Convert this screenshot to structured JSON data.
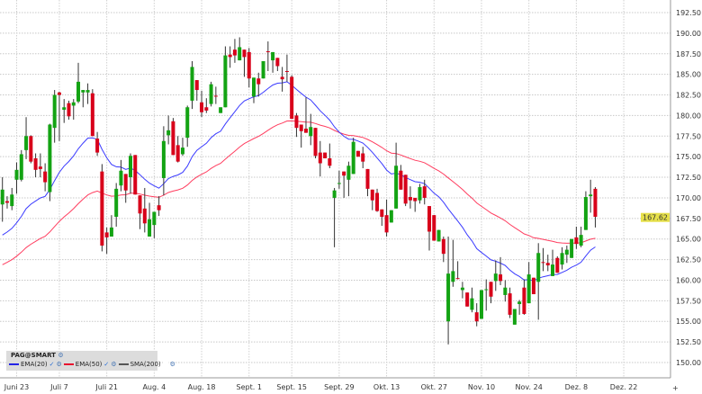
{
  "chart_data": {
    "type": "candlestick",
    "y_axis": {
      "range": [
        148.5,
        194
      ],
      "ticks": [
        192.5,
        190,
        187.5,
        185,
        182.5,
        180,
        177.5,
        175,
        172.5,
        170,
        167.5,
        165,
        162.5,
        160,
        157.5,
        155,
        152.5,
        150
      ],
      "labels": [
        "192.50",
        "190.00",
        "187.50",
        "185.00",
        "182.50",
        "180.00",
        "177.50",
        "175.00",
        "172.50",
        "170.00",
        "167.50",
        "165.00",
        "162.50",
        "160.00",
        "157.50",
        "155.00",
        "152.50",
        "150.00"
      ],
      "position": "right"
    },
    "x_ticks": [
      {
        "label": "Juni 23",
        "index": 3
      },
      {
        "label": "Juli 7",
        "index": 12
      },
      {
        "label": "Juli 21",
        "index": 22
      },
      {
        "label": "Aug. 4",
        "index": 32
      },
      {
        "label": "Aug. 18",
        "index": 42
      },
      {
        "label": "Sept. 1",
        "index": 52
      },
      {
        "label": "Sept. 15",
        "index": 61
      },
      {
        "label": "Sept. 29",
        "index": 71
      },
      {
        "label": "Okt. 13",
        "index": 81
      },
      {
        "label": "Okt. 27",
        "index": 91
      },
      {
        "label": "Nov. 10",
        "index": 101
      },
      {
        "label": "Nov. 24",
        "index": 111
      },
      {
        "label": "Dez. 8",
        "index": 121
      },
      {
        "label": "Dez. 22",
        "index": 131
      }
    ],
    "grid": true,
    "last_price": {
      "value": 167.62,
      "label": "167.62",
      "color": "#e6e04a"
    },
    "colors": {
      "up": "#13a313",
      "down": "#d8001a",
      "wick": "#333333",
      "ema20": "#3a3aff",
      "ema50": "#ff3d5f",
      "sma200": "#555555"
    },
    "ema_seed": {
      "ema20": 164.9,
      "ema50": 161.5
    },
    "candles_ohlc": [
      [
        169.2,
        172.5,
        167.1,
        171.0
      ],
      [
        169.6,
        170.2,
        168.7,
        169.4
      ],
      [
        169.0,
        171.2,
        168.5,
        170.4
      ],
      [
        172.2,
        174.3,
        170.5,
        173.4
      ],
      [
        172.2,
        175.8,
        172.0,
        175.3
      ],
      [
        175.8,
        179.8,
        174.7,
        177.5
      ],
      [
        177.5,
        177.6,
        174.2,
        174.4
      ],
      [
        174.8,
        175.4,
        172.5,
        173.4
      ],
      [
        173.8,
        175.4,
        172.5,
        173.5
      ],
      [
        173.2,
        174.2,
        170.8,
        171.9
      ],
      [
        170.7,
        179.0,
        169.6,
        178.9
      ],
      [
        178.5,
        183.1,
        176.7,
        182.5
      ],
      [
        182.8,
        182.9,
        176.9,
        182.5
      ],
      [
        180.7,
        182.0,
        179.1,
        181.0
      ],
      [
        181.5,
        181.8,
        179.5,
        179.9
      ],
      [
        181.2,
        182.0,
        179.5,
        181.6
      ],
      [
        181.7,
        186.4,
        181.5,
        184.1
      ],
      [
        182.8,
        183.1,
        181.0,
        183.1
      ],
      [
        182.8,
        183.9,
        181.4,
        183.1
      ],
      [
        182.7,
        183.2,
        177.5,
        177.5
      ],
      [
        177.2,
        178.0,
        175.1,
        175.5
      ],
      [
        173.2,
        174.1,
        163.5,
        164.2
      ],
      [
        165.8,
        166.4,
        163.2,
        165.2
      ],
      [
        165.3,
        167.9,
        165.3,
        166.4
      ],
      [
        167.7,
        171.8,
        166.5,
        171.1
      ],
      [
        171.5,
        174.6,
        170.8,
        173.3
      ],
      [
        172.9,
        172.9,
        169.4,
        170.9
      ],
      [
        172.5,
        175.4,
        170.5,
        175.1
      ],
      [
        175.2,
        175.2,
        170.4,
        170.4
      ],
      [
        170.3,
        170.3,
        166.2,
        168.1
      ],
      [
        168.7,
        171.2,
        165.8,
        166.9
      ],
      [
        165.3,
        169.4,
        165.3,
        167.4
      ],
      [
        166.7,
        168.3,
        165.1,
        168.3
      ],
      [
        169.1,
        170.2,
        167.8,
        168.5
      ],
      [
        172.4,
        178.7,
        170.3,
        176.9
      ],
      [
        177.6,
        180.0,
        176.5,
        178.2
      ],
      [
        179.3,
        179.7,
        175.2,
        175.2
      ],
      [
        176.4,
        177.5,
        174.3,
        174.4
      ],
      [
        175.3,
        177.3,
        175.1,
        176.1
      ],
      [
        177.3,
        181.2,
        176.2,
        181.0
      ],
      [
        181.8,
        186.6,
        180.8,
        185.9
      ],
      [
        184.3,
        184.3,
        181.8,
        183.1
      ],
      [
        181.6,
        183.0,
        179.8,
        180.4
      ],
      [
        181.0,
        182.1,
        180.3,
        180.6
      ],
      [
        181.4,
        184.1,
        181.1,
        183.8
      ],
      [
        182.4,
        183.5,
        181.4,
        182.3
      ],
      [
        180.3,
        181.0,
        180.3,
        181.0
      ],
      [
        181.0,
        188.4,
        181.0,
        187.3
      ],
      [
        187.4,
        188.4,
        185.8,
        187.1
      ],
      [
        188.0,
        189.3,
        186.4,
        187.3
      ],
      [
        186.7,
        189.5,
        186.7,
        188.3
      ],
      [
        188.0,
        188.0,
        184.7,
        187.1
      ],
      [
        187.7,
        188.2,
        183.4,
        184.5
      ],
      [
        182.3,
        184.6,
        181.5,
        184.6
      ],
      [
        184.5,
        185.2,
        182.3,
        183.8
      ],
      [
        184.5,
        186.6,
        184.5,
        186.6
      ],
      [
        187.8,
        189.0,
        185.4,
        187.7
      ],
      [
        186.7,
        187.7,
        185.2,
        187.7
      ],
      [
        187.0,
        187.0,
        185.4,
        186.0
      ],
      [
        184.7,
        185.9,
        182.9,
        184.4
      ],
      [
        185.4,
        187.4,
        184.1,
        185.3
      ],
      [
        184.7,
        184.9,
        179.6,
        179.6
      ],
      [
        180.0,
        180.3,
        177.4,
        178.5
      ],
      [
        178.9,
        178.9,
        176.1,
        178.1
      ],
      [
        178.4,
        182.2,
        177.9,
        177.9
      ],
      [
        177.5,
        180.2,
        176.4,
        178.6
      ],
      [
        178.5,
        178.5,
        174.8,
        175.1
      ],
      [
        175.5,
        176.9,
        172.6,
        174.2
      ],
      [
        175.5,
        175.5,
        174.8,
        174.8
      ],
      [
        174.8,
        176.6,
        173.6,
        173.9
      ],
      [
        170.0,
        171.2,
        164.0,
        170.9
      ],
      [
        171.7,
        173.3,
        171.1,
        171.8
      ],
      [
        173.2,
        173.2,
        170.0,
        172.7
      ],
      [
        172.2,
        174.4,
        170.2,
        173.9
      ],
      [
        172.9,
        177.3,
        172.9,
        176.8
      ],
      [
        175.7,
        175.7,
        175.0,
        175.0
      ],
      [
        175.4,
        176.2,
        173.6,
        174.4
      ],
      [
        173.5,
        173.5,
        170.2,
        171.1
      ],
      [
        171.0,
        171.0,
        168.5,
        169.7
      ],
      [
        170.6,
        171.1,
        168.3,
        168.4
      ],
      [
        168.6,
        168.6,
        166.6,
        167.7
      ],
      [
        167.9,
        169.8,
        165.3,
        165.8
      ],
      [
        167.0,
        168.5,
        167.0,
        168.5
      ],
      [
        168.7,
        176.7,
        168.7,
        173.9
      ],
      [
        173.3,
        174.0,
        171.0,
        171.0
      ],
      [
        172.8,
        172.8,
        169.0,
        169.3
      ],
      [
        170.1,
        171.4,
        168.7,
        169.7
      ],
      [
        170.0,
        170.0,
        168.3,
        169.6
      ],
      [
        169.7,
        171.7,
        169.3,
        171.3
      ],
      [
        171.4,
        172.2,
        169.2,
        170.0
      ],
      [
        169.0,
        169.0,
        163.6,
        165.9
      ],
      [
        167.9,
        167.9,
        164.8,
        164.8
      ],
      [
        164.7,
        166.1,
        164.7,
        166.1
      ],
      [
        165.0,
        165.3,
        162.2,
        163.2
      ],
      [
        155.0,
        165.3,
        152.2,
        160.8
      ],
      [
        159.8,
        164.9,
        159.2,
        161.1
      ],
      [
        160.25,
        162.3,
        160.1,
        160.15
      ],
      [
        158.8,
        159.8,
        157.8,
        159.1
      ],
      [
        158.5,
        158.5,
        156.8,
        156.8
      ],
      [
        156.4,
        159.1,
        156.1,
        157.8
      ],
      [
        156.1,
        157.2,
        154.4,
        155.0
      ],
      [
        155.3,
        158.8,
        155.3,
        158.8
      ],
      [
        158.8,
        160.1,
        156.3,
        158.9
      ],
      [
        159.8,
        159.8,
        157.2,
        158.0
      ],
      [
        159.9,
        162.4,
        158.7,
        160.8
      ],
      [
        160.7,
        162.8,
        159.4,
        159.9
      ],
      [
        158.2,
        160.0,
        157.4,
        159.1
      ],
      [
        158.4,
        159.1,
        155.4,
        155.8
      ],
      [
        154.6,
        156.5,
        154.6,
        156.5
      ],
      [
        157.1,
        157.6,
        155.8,
        157.4
      ],
      [
        159.1,
        160.1,
        155.8,
        155.9
      ],
      [
        157.2,
        162.2,
        157.2,
        160.7
      ],
      [
        160.3,
        160.3,
        158.3,
        158.3
      ],
      [
        159.8,
        164.5,
        155.2,
        163.3
      ],
      [
        162.2,
        163.9,
        161.1,
        162.1
      ],
      [
        162.1,
        163.1,
        161.1,
        161.8
      ],
      [
        160.5,
        163.7,
        160.5,
        161.9
      ],
      [
        162.7,
        162.9,
        160.9,
        160.9
      ],
      [
        161.9,
        164.0,
        161.3,
        163.3
      ],
      [
        163.1,
        164.2,
        162.1,
        163.7
      ],
      [
        162.7,
        165.0,
        162.7,
        165.0
      ],
      [
        165.2,
        166.5,
        163.8,
        164.4
      ],
      [
        164.2,
        166.5,
        164.0,
        165.5
      ],
      [
        166.1,
        170.8,
        166.1,
        170.1
      ],
      [
        170.2,
        172.2,
        168.2,
        170.4
      ],
      [
        171.1,
        171.3,
        166.4,
        167.7
      ]
    ]
  },
  "legend": {
    "title": "PAG@SMART",
    "items": [
      {
        "label": "EMA(20)",
        "checked": true,
        "color": "#2323e6"
      },
      {
        "label": "EMA(50)",
        "checked": true,
        "color": "#e8102e"
      },
      {
        "label": "SMA(200)",
        "checked": false,
        "color": "#555555"
      }
    ],
    "check_glyph": "✓",
    "gear_glyph": "⚙"
  },
  "axis_corner": "+"
}
